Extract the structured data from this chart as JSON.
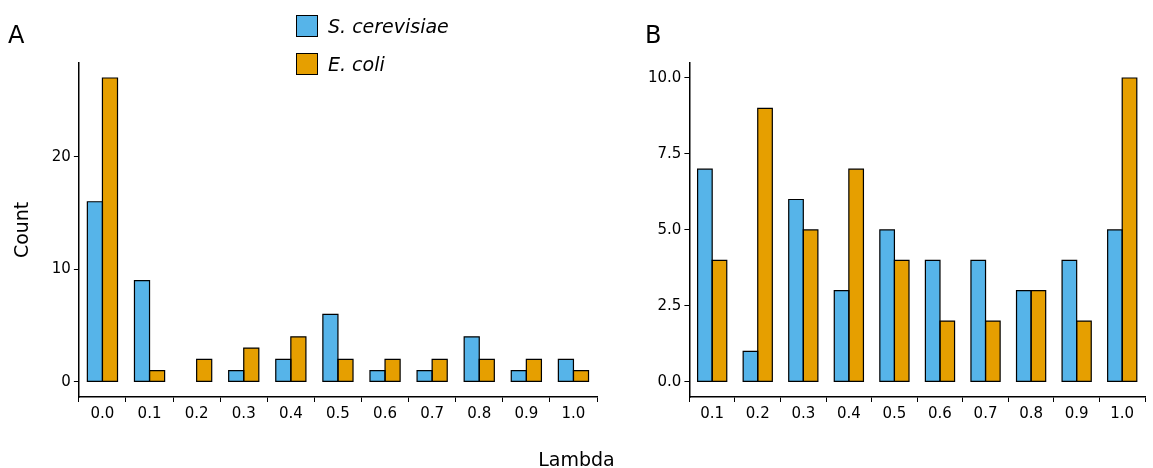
{
  "chart_data": [
    {
      "type": "bar",
      "title": "A",
      "xlabel": "Lambda",
      "ylabel": "Count",
      "legend": "top",
      "categories": [
        "0.0",
        "0.1",
        "0.2",
        "0.3",
        "0.4",
        "0.5",
        "0.6",
        "0.7",
        "0.8",
        "0.9",
        "1.0"
      ],
      "ylim": [
        -1.35,
        28.35
      ],
      "yticks": [
        0,
        10,
        20
      ],
      "grid": false,
      "series": [
        {
          "name": "S. cerevisiae",
          "color": "#56b4e9",
          "values": [
            16,
            9,
            0,
            1,
            2,
            6,
            1,
            1,
            4,
            1,
            2
          ]
        },
        {
          "name": "E. coli",
          "color": "#e69f00",
          "values": [
            27,
            1,
            2,
            3,
            4,
            2,
            2,
            2,
            2,
            2,
            1
          ]
        }
      ]
    },
    {
      "type": "bar",
      "title": "B",
      "categories": [
        "0.1",
        "0.2",
        "0.3",
        "0.4",
        "0.5",
        "0.6",
        "0.7",
        "0.8",
        "0.9",
        "1.0"
      ],
      "ylim": [
        -0.5,
        10.5
      ],
      "yticks": [
        {
          "value": 0,
          "label": "0.0"
        },
        {
          "value": 2.5,
          "label": "2.5"
        },
        {
          "value": 5,
          "label": "5.0"
        },
        {
          "value": 7.5,
          "label": "7.5"
        },
        {
          "value": 10,
          "label": "10.0"
        }
      ],
      "grid": false,
      "series": [
        {
          "color": "#56b4e9",
          "values": [
            7,
            1,
            6,
            3,
            5,
            4,
            4,
            3,
            4,
            5
          ]
        },
        {
          "color": "#e69f00",
          "values": [
            4,
            9,
            5,
            7,
            4,
            2,
            2,
            3,
            2,
            10
          ]
        }
      ]
    }
  ]
}
